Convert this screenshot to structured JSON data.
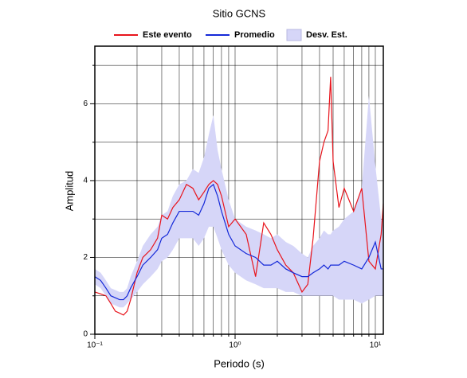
{
  "chart_data": {
    "type": "line",
    "title": "Sitio GCNS",
    "xlabel": "Periodo (s)",
    "ylabel": "Amplitud",
    "xscale": "log",
    "grid": true,
    "xlim": [
      0.1,
      11.4
    ],
    "ylim": [
      0,
      7.5
    ],
    "xticks": [
      {
        "value": 0.1,
        "label": "10⁻¹"
      },
      {
        "value": 1,
        "label": "10⁰"
      },
      {
        "value": 10,
        "label": "10¹"
      }
    ],
    "xminor": [
      0.2,
      0.3,
      0.4,
      0.5,
      0.6,
      0.7,
      0.8,
      0.9,
      2,
      3,
      4,
      5,
      6,
      7,
      8,
      9
    ],
    "yticks": [
      0,
      2,
      4,
      6
    ],
    "yminor": [
      1,
      3,
      5,
      7
    ],
    "x": [
      0.1,
      0.11,
      0.12,
      0.13,
      0.14,
      0.15,
      0.16,
      0.17,
      0.18,
      0.2,
      0.22,
      0.25,
      0.28,
      0.3,
      0.33,
      0.36,
      0.4,
      0.45,
      0.5,
      0.55,
      0.6,
      0.65,
      0.7,
      0.75,
      0.8,
      0.9,
      1.0,
      1.2,
      1.4,
      1.6,
      1.8,
      2.0,
      2.3,
      2.6,
      3.0,
      3.3,
      3.6,
      4.0,
      4.3,
      4.6,
      4.8,
      5.0,
      5.5,
      6.0,
      7.0,
      8.0,
      9.0,
      10,
      11,
      11.4
    ],
    "series": [
      {
        "name": "Este evento",
        "color": "#e8141c",
        "values": [
          1.1,
          1.05,
          1.0,
          0.8,
          0.6,
          0.55,
          0.5,
          0.6,
          0.9,
          1.6,
          2.0,
          2.2,
          2.5,
          3.1,
          3.0,
          3.3,
          3.5,
          3.9,
          3.8,
          3.5,
          3.7,
          3.9,
          4.0,
          3.9,
          3.6,
          2.8,
          3.0,
          2.6,
          1.5,
          2.9,
          2.6,
          2.2,
          1.8,
          1.6,
          1.1,
          1.3,
          2.5,
          4.5,
          5.0,
          5.3,
          6.7,
          4.5,
          3.3,
          3.8,
          3.2,
          3.8,
          1.9,
          1.7,
          2.6,
          3.4
        ]
      },
      {
        "name": "Promedio",
        "color": "#1428d8",
        "values": [
          1.5,
          1.4,
          1.2,
          1.0,
          0.95,
          0.9,
          0.9,
          1.0,
          1.2,
          1.5,
          1.8,
          2.0,
          2.2,
          2.5,
          2.6,
          2.9,
          3.2,
          3.2,
          3.2,
          3.1,
          3.4,
          3.8,
          3.9,
          3.6,
          3.2,
          2.6,
          2.3,
          2.1,
          2.0,
          1.8,
          1.8,
          1.9,
          1.7,
          1.6,
          1.5,
          1.5,
          1.6,
          1.7,
          1.8,
          1.7,
          1.8,
          1.8,
          1.8,
          1.9,
          1.8,
          1.7,
          2.0,
          2.4,
          1.7,
          1.7
        ]
      },
      {
        "name": "Desv. Est.",
        "color": "#d6d6f8",
        "lower": [
          1.3,
          1.2,
          1.0,
          0.8,
          0.75,
          0.7,
          0.7,
          0.8,
          0.9,
          1.1,
          1.3,
          1.5,
          1.7,
          1.9,
          2.0,
          2.2,
          2.5,
          2.5,
          2.5,
          2.3,
          2.5,
          2.8,
          2.8,
          2.5,
          2.2,
          1.8,
          1.6,
          1.4,
          1.3,
          1.2,
          1.2,
          1.2,
          1.1,
          1.1,
          1.0,
          1.0,
          1.0,
          1.0,
          1.0,
          1.0,
          1.0,
          1.0,
          0.9,
          0.9,
          0.9,
          0.8,
          0.9,
          1.0,
          1.0,
          1.0
        ],
        "upper": [
          1.7,
          1.6,
          1.4,
          1.2,
          1.15,
          1.1,
          1.1,
          1.2,
          1.5,
          1.9,
          2.3,
          2.6,
          2.8,
          3.1,
          3.2,
          3.6,
          3.9,
          4.0,
          4.3,
          4.2,
          4.6,
          5.2,
          5.7,
          4.8,
          4.3,
          3.5,
          3.0,
          2.8,
          2.7,
          2.6,
          2.5,
          2.6,
          2.4,
          2.3,
          2.1,
          2.0,
          2.3,
          2.5,
          2.7,
          2.6,
          2.6,
          2.7,
          2.8,
          3.0,
          3.2,
          3.8,
          6.2,
          4.4,
          3.0,
          2.8
        ]
      }
    ]
  }
}
